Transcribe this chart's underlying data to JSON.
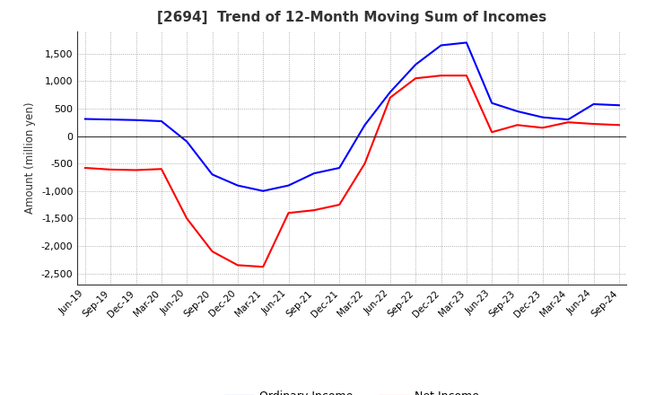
{
  "title": "[2694]  Trend of 12-Month Moving Sum of Incomes",
  "ylabel": "Amount (million yen)",
  "ylim": [
    -2700,
    1900
  ],
  "yticks": [
    -2500,
    -2000,
    -1500,
    -1000,
    -500,
    0,
    500,
    1000,
    1500
  ],
  "x_labels": [
    "Jun-19",
    "Sep-19",
    "Dec-19",
    "Mar-20",
    "Jun-20",
    "Sep-20",
    "Dec-20",
    "Mar-21",
    "Jun-21",
    "Sep-21",
    "Dec-21",
    "Mar-22",
    "Jun-22",
    "Sep-22",
    "Dec-22",
    "Mar-23",
    "Jun-23",
    "Sep-23",
    "Dec-23",
    "Mar-24",
    "Jun-24",
    "Sep-24"
  ],
  "ordinary_income": [
    310,
    300,
    290,
    270,
    -100,
    -700,
    -900,
    -1000,
    -900,
    -680,
    -580,
    200,
    800,
    1300,
    1650,
    1700,
    600,
    450,
    340,
    300,
    580,
    560
  ],
  "net_income": [
    -580,
    -610,
    -620,
    -600,
    -1500,
    -2100,
    -2350,
    -2380,
    -1400,
    -1350,
    -1250,
    -500,
    700,
    1050,
    1100,
    1100,
    70,
    200,
    150,
    250,
    220,
    200
  ],
  "ordinary_color": "#0000FF",
  "net_color": "#FF0000",
  "background_color": "#FFFFFF",
  "grid_dot_color": "#999999"
}
